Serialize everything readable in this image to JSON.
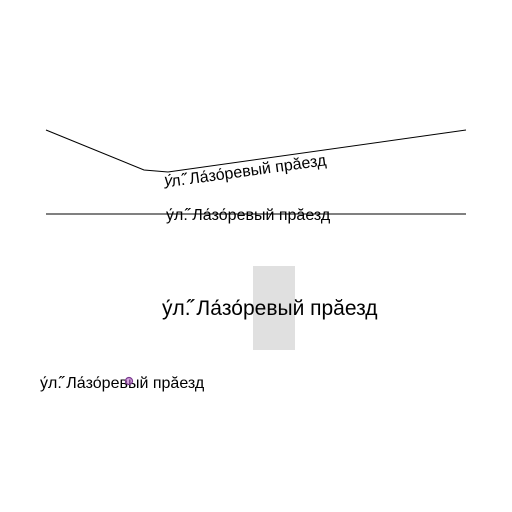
{
  "labels": {
    "curved": "у́л.̋̋ Ла́зо́ревый прӑезд",
    "straight": "у́л.̋̋ Ла́зо́ревый прӑезд",
    "large": "у́л.̋̋ Ла́зо́ревый прӑезд",
    "small": "у́л.̋̋ Ла́зо́ревый прӑезд"
  },
  "colors": {
    "line": "#000000",
    "highlight": "#e0e0e0",
    "marker_stroke": "#7a3a8f",
    "marker_fill": "#c06ad0"
  }
}
